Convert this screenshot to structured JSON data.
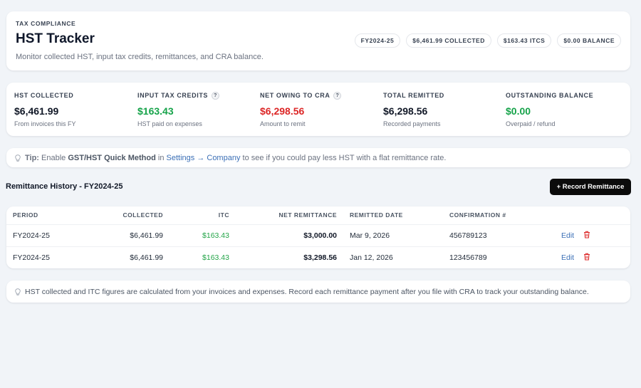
{
  "header": {
    "eyebrow": "TAX COMPLIANCE",
    "title": "HST Tracker",
    "subtitle": "Monitor collected HST, input tax credits, remittances, and CRA balance.",
    "pills": [
      "FY2024-25",
      "$6,461.99 COLLECTED",
      "$163.43 ITCS",
      "$0.00 BALANCE"
    ]
  },
  "stats": [
    {
      "label": "HST COLLECTED",
      "value": "$6,461.99",
      "sub": "From invoices this FY",
      "help": false,
      "tone": "default"
    },
    {
      "label": "INPUT TAX CREDITS",
      "value": "$163.43",
      "sub": "HST paid on expenses",
      "help": true,
      "tone": "green"
    },
    {
      "label": "NET OWING TO CRA",
      "value": "$6,298.56",
      "sub": "Amount to remit",
      "help": true,
      "tone": "red"
    },
    {
      "label": "TOTAL REMITTED",
      "value": "$6,298.56",
      "sub": "Recorded payments",
      "help": false,
      "tone": "default"
    },
    {
      "label": "OUTSTANDING BALANCE",
      "value": "$0.00",
      "sub": "Overpaid / refund",
      "help": false,
      "tone": "green"
    }
  ],
  "help_glyph": "?",
  "tip": {
    "prefix": "Tip:",
    "text_before": "Enable",
    "feature": "GST/HST Quick Method",
    "text_in": "in",
    "link_settings": "Settings",
    "arrow": "→",
    "link_company": "Company",
    "text_after": "to see if you could pay less HST with a flat remittance rate."
  },
  "section": {
    "title": "Remittance History - FY2024-25",
    "record_button": "+ Record Remittance"
  },
  "table": {
    "columns": [
      "PERIOD",
      "COLLECTED",
      "ITC",
      "NET REMITTANCE",
      "REMITTED DATE",
      "CONFIRMATION #"
    ],
    "rows": [
      {
        "period": "FY2024-25",
        "collected": "$6,461.99",
        "itc": "$163.43",
        "net": "$3,000.00",
        "date": "Mar 9, 2026",
        "confirmation": "456789123",
        "edit": "Edit"
      },
      {
        "period": "FY2024-25",
        "collected": "$6,461.99",
        "itc": "$163.43",
        "net": "$3,298.56",
        "date": "Jan 12, 2026",
        "confirmation": "123456789",
        "edit": "Edit"
      }
    ]
  },
  "note": "HST collected and ITC figures are calculated from your invoices and expenses. Record each remittance payment after you file with CRA to track your outstanding balance.",
  "icons": {
    "tip": "lightbulb-icon",
    "note": "lightbulb-icon",
    "delete": "trash-icon",
    "help": "help-icon"
  },
  "colors": {
    "green": "#16a34a",
    "red": "#dc2626",
    "link": "#3b6fb6",
    "button": "#0b0b0b",
    "trash": "#dc2626"
  }
}
